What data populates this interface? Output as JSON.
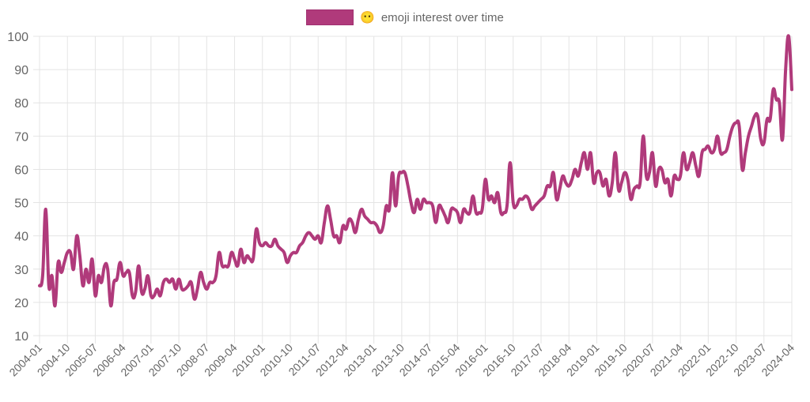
{
  "chart_data": {
    "type": "line",
    "title": "",
    "xlabel": "",
    "ylabel": "",
    "ylim": [
      10,
      100
    ],
    "yticks": [
      "100",
      "90",
      "80",
      "70",
      "60",
      "50",
      "40",
      "30",
      "20",
      "10"
    ],
    "grid": true,
    "legend_placement": "top",
    "x_tick_labels": [
      "2004-01",
      "2004-10",
      "2005-07",
      "2006-04",
      "2007-01",
      "2007-10",
      "2008-07",
      "2009-04",
      "2010-01",
      "2010-10",
      "2011-07",
      "2012-04",
      "2013-01",
      "2013-10",
      "2014-07",
      "2015-04",
      "2016-01",
      "2016-10",
      "2017-07",
      "2018-04",
      "2019-01",
      "2019-10",
      "2020-07",
      "2021-04",
      "2022-01",
      "2022-10",
      "2023-07",
      "2024-04"
    ],
    "x_start": "2004-01",
    "x_end": "2024-04",
    "x_interval": "monthly",
    "series": [
      {
        "name": "😶 emoji interest over time",
        "color": "#b03a7b",
        "values": [
          25,
          28,
          48,
          25,
          28,
          19,
          32,
          29,
          32,
          35,
          35,
          30,
          40,
          34,
          25,
          30,
          26,
          33,
          22,
          28,
          26,
          31,
          30,
          19,
          26,
          27,
          32,
          28,
          29,
          29,
          22,
          23,
          31,
          23,
          24,
          28,
          22,
          22,
          24,
          22,
          26,
          27,
          26,
          27,
          24,
          27,
          24,
          24,
          25,
          26,
          21,
          24,
          29,
          26,
          24,
          26,
          26,
          28,
          35,
          31,
          31,
          31,
          35,
          33,
          31,
          36,
          32,
          34,
          33,
          33,
          42,
          38,
          37,
          38,
          37,
          37,
          39,
          37,
          36,
          35,
          32,
          34,
          35,
          35,
          37,
          38,
          40,
          41,
          40,
          39,
          40,
          38,
          44,
          49,
          45,
          40,
          40,
          38,
          43,
          42,
          45,
          44,
          41,
          45,
          48,
          46,
          45,
          44,
          44,
          43,
          41,
          43,
          49,
          48,
          59,
          49,
          58,
          59,
          59,
          55,
          50,
          47,
          51,
          48,
          51,
          50,
          50,
          49,
          44,
          49,
          48,
          46,
          44,
          48,
          48,
          47,
          44,
          48,
          47,
          47,
          52,
          47,
          47,
          48,
          57,
          51,
          52,
          50,
          53,
          47,
          47,
          49,
          62,
          50,
          49,
          51,
          51,
          52,
          51,
          48,
          49,
          50,
          51,
          52,
          55,
          55,
          59,
          51,
          54,
          58,
          56,
          55,
          57,
          60,
          58,
          62,
          65,
          60,
          65,
          56,
          59,
          59,
          55,
          57,
          52,
          56,
          65,
          54,
          56,
          59,
          57,
          51,
          54,
          55,
          56,
          70,
          58,
          59,
          65,
          55,
          60,
          60,
          56,
          57,
          52,
          58,
          57,
          58,
          65,
          60,
          62,
          65,
          61,
          58,
          65,
          66,
          67,
          65,
          66,
          70,
          65,
          65,
          66,
          70,
          73,
          74,
          73,
          60,
          65,
          70,
          73,
          76,
          76,
          69,
          68,
          75,
          75,
          84,
          81,
          80,
          69,
          90,
          100,
          84
        ]
      }
    ]
  },
  "legend": {
    "emoji": "😶",
    "label": "emoji interest over time"
  }
}
